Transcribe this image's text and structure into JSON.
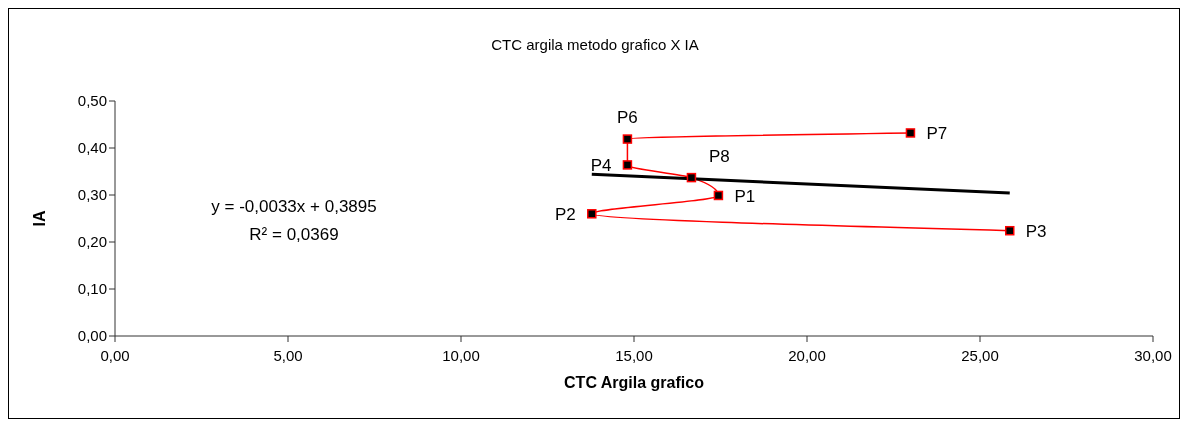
{
  "chart_data": {
    "type": "line",
    "title": "CTC argila metodo grafico X IA",
    "xlabel": "CTC Argila grafico",
    "ylabel": "IA",
    "series": [
      {
        "type": "line",
        "x": [
          22.99,
          14.81,
          14.81,
          16.66,
          17.44,
          13.78,
          25.86
        ],
        "values": [
          0.432,
          0.419,
          0.364,
          0.337,
          0.299,
          0.26,
          0.224
        ],
        "color": "#ff0000",
        "marker": "square",
        "line_style": "solid"
      },
      {
        "type": "line",
        "x": [
          13.78,
          25.86
        ],
        "values": [
          0.344,
          0.304
        ],
        "color": "#000000",
        "marker": "none",
        "line_style": "solid"
      }
    ],
    "xlim": [
      0,
      30
    ],
    "xticks": [
      {
        "value": 0,
        "label": "0,00"
      },
      {
        "value": 5,
        "label": "5,00"
      },
      {
        "value": 10,
        "label": "10,00"
      },
      {
        "value": 15,
        "label": "15,00"
      },
      {
        "value": 20,
        "label": "20,00"
      },
      {
        "value": 25,
        "label": "25,00"
      },
      {
        "value": 30,
        "label": "30,00"
      }
    ],
    "ylim": [
      0,
      0.5
    ],
    "yticks": [
      {
        "value": 0,
        "label": "0,00"
      },
      {
        "value": 0.1,
        "label": "0,10"
      },
      {
        "value": 0.2,
        "label": "0,20"
      },
      {
        "value": 0.3,
        "label": "0,30"
      },
      {
        "value": 0.4,
        "label": "0,40"
      },
      {
        "value": 0.5,
        "label": "0,50"
      }
    ],
    "annotations": [
      {
        "text": "P7",
        "x": 22.99,
        "y": 0.432
      },
      {
        "text": "P6",
        "x": 14.81,
        "y": 0.419
      },
      {
        "text": "P4",
        "x": 14.81,
        "y": 0.364
      },
      {
        "text": "P8",
        "x": 16.66,
        "y": 0.337
      },
      {
        "text": "P1",
        "x": 17.44,
        "y": 0.299
      },
      {
        "text": "P2",
        "x": 13.78,
        "y": 0.26
      },
      {
        "text": "P3",
        "x": 25.86,
        "y": 0.224
      },
      "y = -0,0033x + 0,3895",
      "R² = 0,0369"
    ],
    "grid": false,
    "legend": false
  }
}
